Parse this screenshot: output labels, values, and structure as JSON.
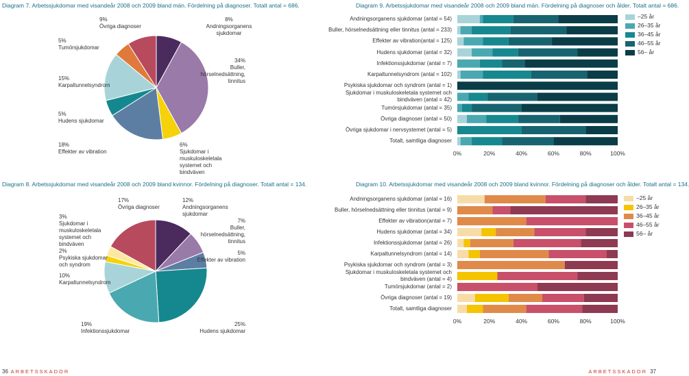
{
  "chart_data": [
    {
      "type": "pie",
      "title": "Diagram 7. Arbetssjukdomar med visandeår 2008 och 2009 bland män. Fördelning på diagnoser. Totalt antal = 686.",
      "categories": [
        "Andningsorganens sjukdomar",
        "Buller, hörselnedsättning, tinnitus",
        "Sjukdomar i muskuloskeletala systemet och bindväven",
        "Effekter av vibration",
        "Hudens sjukdomar",
        "Karpaltunnelsyndrom",
        "Tumörsjukdomar",
        "Övriga diagnoser"
      ],
      "values": [
        8,
        34,
        6,
        18,
        5,
        15,
        5,
        9
      ],
      "value_labels": [
        "8%",
        "34%",
        "6%",
        "18%",
        "5%",
        "15%",
        "5%",
        "9%"
      ],
      "colors": [
        "#4b2a5e",
        "#9a7aa8",
        "#f5d20a",
        "#5d7ea3",
        "#15888f",
        "#a8d4d9",
        "#e07a3c",
        "#b84a5e"
      ]
    },
    {
      "type": "stacked_bar",
      "title": "Diagram 9. Arbetssjukdomar med visandeår 2008 och 2009 bland män. Fördelning på diagnoser och ålder. Totalt antal = 686.",
      "categories": [
        "Andningsorganens sjukdomar (antal = 54)",
        "Buller, hörselnedsättning eller tinnitus (antal = 233)",
        "Effekter av vibration(antal = 125)",
        "Hudens sjukdomar (antal = 32)",
        "Infektionssjukdomar (antal = 7)",
        "Karpaltunnelsyndrom (antal = 102)",
        "Psykiska sjukdomar och syndrom (antal = 1)",
        "Sjukdomar i muskuloskeletala systemet och bindväven (antal = 42)",
        "Tumörsjukdomar (antal = 35)",
        "Övriga diagnoser (antal = 50)",
        "Övriga sjukdomar i nervsystemet (antal = 5)",
        "Totalt, samtliga diagnoser"
      ],
      "series": [
        {
          "name": "–25 år",
          "color": "#a8d4d9",
          "values": [
            14,
            2,
            4,
            9,
            0,
            2,
            0,
            0,
            0,
            6,
            0,
            2
          ]
        },
        {
          "name": "26–35 år",
          "color": "#4aa8b0",
          "values": [
            2,
            7,
            12,
            13,
            14,
            14,
            0,
            7,
            3,
            12,
            0,
            7
          ]
        },
        {
          "name": "36–45 år",
          "color": "#17888f",
          "values": [
            19,
            24,
            16,
            16,
            14,
            30,
            0,
            12,
            6,
            20,
            40,
            19
          ]
        },
        {
          "name": "46–55 år",
          "color": "#176470",
          "values": [
            28,
            35,
            27,
            37,
            14,
            35,
            0,
            31,
            31,
            26,
            40,
            32
          ]
        },
        {
          "name": "56– år",
          "color": "#0a3d47",
          "values": [
            37,
            32,
            41,
            25,
            58,
            19,
            100,
            50,
            60,
            36,
            20,
            40
          ]
        }
      ],
      "xlim": [
        0,
        100
      ],
      "xticks": [
        {
          "value": 0,
          "label": "0%"
        },
        {
          "value": 20,
          "label": "20%"
        },
        {
          "value": 40,
          "label": "40%"
        },
        {
          "value": 60,
          "label": "60%"
        },
        {
          "value": 80,
          "label": "80%"
        },
        {
          "value": 100,
          "label": "100%"
        }
      ]
    },
    {
      "type": "pie",
      "title": "Diagram 8. Arbetssjukdomar med visandeår 2008 och 2009 bland kvinnor. Fördelning på diagnoser. Totalt antal = 134.",
      "categories": [
        "Andningsorganens sjukdomar",
        "Buller, hörselnedsättning, tinnitus",
        "Effekter av vibration",
        "Hudens sjukdomar",
        "Infektionssjukdomar",
        "Karpaltunnelsyndrom",
        "Psykiska sjukdomar och syndrom",
        "Sjukdomar i muskuloskeletala systemet och bindväven",
        "Övriga diagnoser"
      ],
      "values": [
        12,
        7,
        5,
        25,
        19,
        10,
        2,
        3,
        17
      ],
      "value_labels": [
        "12%",
        "7%",
        "5%",
        "25%",
        "19%",
        "10%",
        "2%",
        "3%",
        "17%"
      ],
      "colors": [
        "#4b2a5e",
        "#9a7aa8",
        "#5d7ea3",
        "#15888f",
        "#4aa8b0",
        "#a8d4d9",
        "#f5d20a",
        "#fbe9a0",
        "#b84a5e"
      ]
    },
    {
      "type": "stacked_bar",
      "title": "Diagram 10. Arbetssjukdomar med visandeår 2008 och 2009 bland kvinnor. Fördelning på diagnoser och ålder. Totalt antal = 134.",
      "categories": [
        "Andningsorganens sjukdomar (antal = 16)",
        "Buller, hörselnedsättning eller tinnitus (antal = 9)",
        "Effekter av vibration(antal = 7)",
        "Hudens sjukdomar (antal = 34)",
        "Infektionssjukdomar (antal = 26)",
        "Karpaltunnelsyndrom (antal = 14)",
        "Psykiska sjukdomar och syndrom (antal = 3)",
        "Sjukdomar i muskuloskeletala systemet och bindväven (antal = 4)",
        "Tumörsjukdomar (antal = 2)",
        "Övriga diagnoser (antal = 19)",
        "Totalt, samtliga diagnoser"
      ],
      "series": [
        {
          "name": "–25 år",
          "color": "#f8dca8",
          "values": [
            17,
            0,
            0,
            15,
            4,
            7,
            0,
            0,
            0,
            11,
            6
          ]
        },
        {
          "name": "26–35 år",
          "color": "#f5c400",
          "values": [
            0,
            0,
            0,
            9,
            4,
            7,
            0,
            25,
            0,
            21,
            10
          ]
        },
        {
          "name": "36–45 år",
          "color": "#e08a4a",
          "values": [
            38,
            22,
            43,
            24,
            27,
            43,
            67,
            0,
            0,
            21,
            27
          ]
        },
        {
          "name": "46–55 år",
          "color": "#c8506a",
          "values": [
            25,
            11,
            57,
            32,
            42,
            36,
            0,
            50,
            50,
            26,
            35
          ]
        },
        {
          "name": "56– år",
          "color": "#8e3a52",
          "values": [
            20,
            67,
            0,
            20,
            23,
            7,
            33,
            25,
            50,
            21,
            22
          ]
        }
      ],
      "xlim": [
        0,
        100
      ],
      "xticks": [
        {
          "value": 0,
          "label": "0%"
        },
        {
          "value": 20,
          "label": "20%"
        },
        {
          "value": 40,
          "label": "40%"
        },
        {
          "value": 60,
          "label": "60%"
        },
        {
          "value": 80,
          "label": "80%"
        },
        {
          "value": 100,
          "label": "100%"
        }
      ]
    }
  ],
  "footer": {
    "left_page": "36",
    "right_page": "37",
    "publication": "ARBETSSKADOR"
  }
}
